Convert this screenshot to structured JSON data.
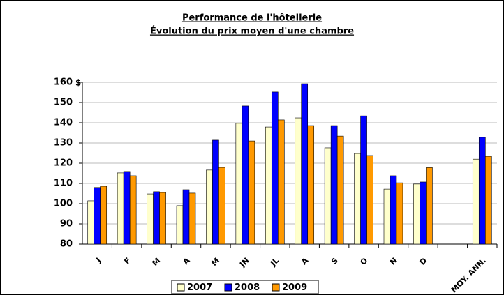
{
  "chart_data": {
    "type": "bar",
    "title": "Performance de l'hôtellerie",
    "subtitle": "Évolution du prix moyen d'une chambre",
    "y_label": "$",
    "categories": [
      "J",
      "F",
      "M",
      "A",
      "M",
      "JN",
      "JL",
      "A",
      "S",
      "O",
      "N",
      "D",
      null,
      "MOY. ANN."
    ],
    "series": [
      {
        "name": "2007",
        "color": "#ffffcc",
        "values": [
          101.4,
          115.2,
          104.8,
          99,
          116.6,
          139.7,
          137.9,
          142.4,
          127.6,
          124.8,
          107.2,
          109.7,
          null,
          122
        ]
      },
      {
        "name": "2008",
        "color": "#0000ff",
        "values": [
          108,
          115.9,
          105.9,
          106.9,
          131.4,
          148.3,
          155.2,
          159.3,
          138.6,
          143.4,
          113.8,
          110.7,
          null,
          132.8
        ]
      },
      {
        "name": "2009",
        "color": "#ff9900",
        "values": [
          108.6,
          113.8,
          105.5,
          105.2,
          117.9,
          131,
          141.4,
          138.6,
          133.4,
          123.8,
          110.3,
          117.8,
          null,
          123.4
        ]
      }
    ],
    "ylim": [
      80,
      160
    ],
    "yticks": [
      80,
      90,
      100,
      110,
      120,
      130,
      140,
      150,
      160
    ],
    "grid": true,
    "legend": "bottom"
  }
}
